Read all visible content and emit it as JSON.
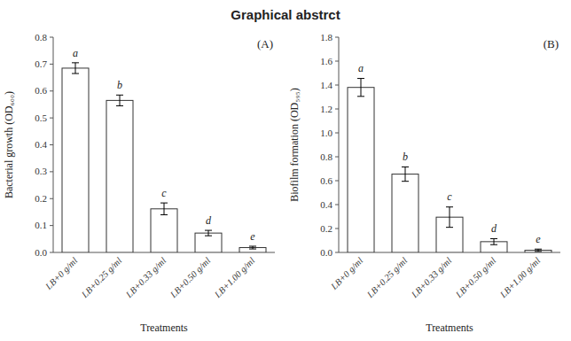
{
  "title": "Graphical abstrct",
  "chart_data": [
    {
      "type": "bar",
      "annotations": [
        "(A)"
      ],
      "categories": [
        "LB+0 g/ml",
        "LB+0.25 g/ml",
        "LB+0.33 g/ml",
        "LB+0.50 g/ml",
        "LB+1.00 g/ml"
      ],
      "values": [
        0.685,
        0.565,
        0.162,
        0.072,
        0.018
      ],
      "errors": [
        0.02,
        0.02,
        0.022,
        0.01,
        0.005
      ],
      "sig_labels": [
        "a",
        "b",
        "c",
        "d",
        "e"
      ],
      "ylabel": "Bacterial growth (OD₆₀₀)",
      "xlabel": "Treatments",
      "ylim": [
        0,
        0.8
      ],
      "yticks": [
        {
          "value": 0,
          "label": "0.0"
        },
        0.1,
        0.2,
        0.3,
        0.4,
        0.5,
        0.6,
        0.7,
        0.8
      ],
      "color": "white",
      "grid": false
    },
    {
      "type": "bar",
      "annotations": [
        "(B)"
      ],
      "categories": [
        "LB+0 g/ml",
        "LB+0.25 g/ml",
        "LB+0.33 g/ml",
        "LB+0.50 g/ml",
        "LB+1.00 g/ml"
      ],
      "values": [
        1.38,
        0.655,
        0.295,
        0.09,
        0.018
      ],
      "errors": [
        0.075,
        0.06,
        0.085,
        0.025,
        0.01
      ],
      "sig_labels": [
        "a",
        "b",
        "c",
        "d",
        "e"
      ],
      "ylabel": "Biofilm formation (OD₅₉₅)",
      "xlabel": "Treatments",
      "ylim": [
        0,
        1.8
      ],
      "yticks": [
        {
          "value": 0,
          "label": "0.0"
        },
        0.2,
        0.4,
        0.6,
        0.8,
        {
          "value": 1,
          "label": "1.0"
        },
        1.2,
        1.4,
        1.6,
        1.8
      ],
      "color": "white",
      "grid": false
    }
  ]
}
